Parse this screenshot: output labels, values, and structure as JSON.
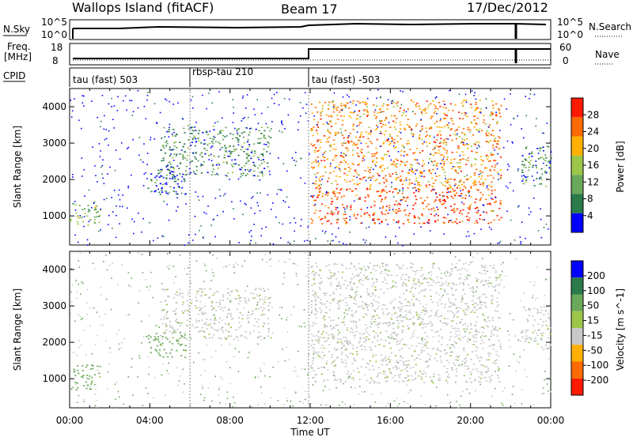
{
  "header": {
    "site": "Wallops Island (fitACF)",
    "beam": "Beam 17",
    "date": "17/Dec/2012"
  },
  "summary": {
    "nsky_label": "N.Sky",
    "nsky_ticks": [
      "10^5",
      "10^0"
    ],
    "nsearch_label": "N.Search",
    "nsearch_ticks": [
      "10^5",
      "10^0"
    ],
    "freq_label_1": "Freq.",
    "freq_label_2": "[MHz]",
    "freq_ticks": [
      "18",
      "8"
    ],
    "nave_label": "Nave",
    "nave_ticks": [
      "60",
      "0"
    ],
    "cpid_label": "CPID",
    "cpid_segments": [
      {
        "label": "tau (fast) 503",
        "start_hour": 0
      },
      {
        "label": "rbsp-tau 210",
        "start_hour": 6
      },
      {
        "label": "tau (fast) -503",
        "start_hour": 12
      }
    ]
  },
  "chart_data": [
    {
      "type": "heatmap",
      "panel": "power",
      "ylabel": "Slant Range [km]",
      "xlabel": "Time UT",
      "x_ticks": [
        "00:00",
        "04:00",
        "08:00",
        "12:00",
        "16:00",
        "20:00",
        "00:00"
      ],
      "xlim_hours": [
        0,
        24
      ],
      "ylim": [
        200,
        4500
      ],
      "y_ticks": [
        1000,
        2000,
        3000,
        4000
      ],
      "colorbar_label": "Power [dB]",
      "colorbar_ticks": [
        4,
        8,
        12,
        16,
        20,
        24,
        28
      ],
      "colorbar_colors": [
        "#0000ff",
        "#2a7a4a",
        "#6aa85a",
        "#9cc64a",
        "#ffb000",
        "#ff6a00",
        "#ff1a00"
      ],
      "echo_regions": [
        {
          "hours": [
            0.0,
            1.5
          ],
          "range": [
            700,
            1400
          ],
          "level": 16
        },
        {
          "hours": [
            3.8,
            5.8
          ],
          "range": [
            1600,
            2300
          ],
          "level": 8
        },
        {
          "hours": [
            4.5,
            10.0
          ],
          "range": [
            2100,
            3500
          ],
          "level": 12
        },
        {
          "hours": [
            12.0,
            21.5
          ],
          "range": [
            800,
            1800
          ],
          "level": 28
        },
        {
          "hours": [
            12.0,
            21.5
          ],
          "range": [
            1800,
            4200
          ],
          "level": 24
        },
        {
          "hours": [
            22.5,
            24.0
          ],
          "range": [
            1800,
            3000
          ],
          "level": 12
        }
      ]
    },
    {
      "type": "heatmap",
      "panel": "velocity",
      "ylabel": "Slant Range [km]",
      "xlabel": "Time UT",
      "x_ticks": [
        "00:00",
        "04:00",
        "08:00",
        "12:00",
        "16:00",
        "20:00",
        "00:00"
      ],
      "xlim_hours": [
        0,
        24
      ],
      "ylim": [
        200,
        4500
      ],
      "y_ticks": [
        1000,
        2000,
        3000,
        4000
      ],
      "colorbar_label": "Velocity [m s^-1]",
      "colorbar_ticks": [
        200,
        100,
        50,
        15,
        -15,
        -50,
        -100,
        -200
      ],
      "colorbar_colors": [
        "#0000ff",
        "#2a7a4a",
        "#6aa85a",
        "#9cc64a",
        "#c8c8c8",
        "#ffb000",
        "#ff6a00",
        "#ff1a00"
      ],
      "echo_regions": [
        {
          "hours": [
            0.0,
            1.5
          ],
          "range": [
            700,
            1400
          ],
          "level": 50
        },
        {
          "hours": [
            3.8,
            5.8
          ],
          "range": [
            1600,
            2300
          ],
          "level": 50
        },
        {
          "hours": [
            4.5,
            10.0
          ],
          "range": [
            2100,
            3500
          ],
          "level": 0
        },
        {
          "hours": [
            12.0,
            21.5
          ],
          "range": [
            900,
            4200
          ],
          "level": 0
        },
        {
          "hours": [
            22.5,
            24.0
          ],
          "range": [
            1800,
            3000
          ],
          "level": 0
        }
      ]
    }
  ]
}
